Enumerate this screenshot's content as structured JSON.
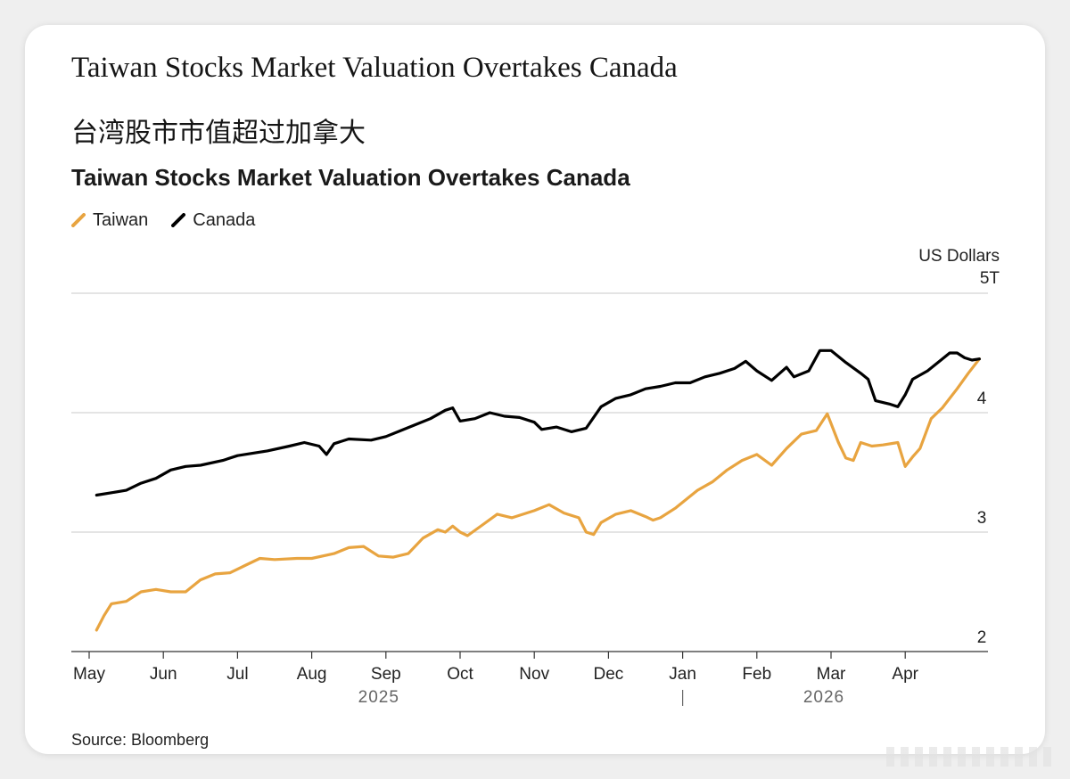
{
  "headline": "Taiwan Stocks Market Valuation Overtakes Canada",
  "headline_cn": "台湾股市市值超过加拿大",
  "source": "Source: Bloomberg",
  "colors": {
    "taiwan": "#e8a440",
    "canada": "#000000",
    "grid": "#d4d4d4",
    "axis": "#333333"
  },
  "chart_data": {
    "type": "line",
    "title": "Taiwan Stocks Market Valuation Overtakes Canada",
    "ylabel": "US Dollars",
    "y_unit_suffix": "T",
    "ylim": [
      2,
      5
    ],
    "yticks": [
      2,
      3,
      4,
      5
    ],
    "ytick_labels": [
      "2",
      "3",
      "4",
      "5T"
    ],
    "xlim": [
      0,
      12.2
    ],
    "x_unit": "months since 1 May 2025",
    "month_ticks": [
      {
        "label": "May",
        "x": 0
      },
      {
        "label": "Jun",
        "x": 1
      },
      {
        "label": "Jul",
        "x": 2
      },
      {
        "label": "Aug",
        "x": 3
      },
      {
        "label": "Sep",
        "x": 4
      },
      {
        "label": "Oct",
        "x": 5
      },
      {
        "label": "Nov",
        "x": 6
      },
      {
        "label": "Dec",
        "x": 7
      },
      {
        "label": "Jan",
        "x": 8
      },
      {
        "label": "Feb",
        "x": 9
      },
      {
        "label": "Mar",
        "x": 10
      },
      {
        "label": "Apr",
        "x": 11
      }
    ],
    "year_labels": [
      {
        "label": "2025",
        "x": 4
      },
      {
        "label": "2026",
        "x": 10
      }
    ],
    "year_divider_x": 8,
    "legend": [
      "Taiwan",
      "Canada"
    ],
    "legend_position": "top-left",
    "series": [
      {
        "name": "Taiwan",
        "color": "#e8a440",
        "points": [
          [
            0.1,
            2.18
          ],
          [
            0.2,
            2.3
          ],
          [
            0.3,
            2.4
          ],
          [
            0.5,
            2.42
          ],
          [
            0.7,
            2.5
          ],
          [
            0.9,
            2.52
          ],
          [
            1.1,
            2.5
          ],
          [
            1.3,
            2.5
          ],
          [
            1.5,
            2.6
          ],
          [
            1.7,
            2.65
          ],
          [
            1.9,
            2.66
          ],
          [
            2.1,
            2.72
          ],
          [
            2.3,
            2.78
          ],
          [
            2.5,
            2.77
          ],
          [
            2.8,
            2.78
          ],
          [
            3.0,
            2.78
          ],
          [
            3.3,
            2.82
          ],
          [
            3.5,
            2.87
          ],
          [
            3.7,
            2.88
          ],
          [
            3.9,
            2.8
          ],
          [
            4.1,
            2.79
          ],
          [
            4.3,
            2.82
          ],
          [
            4.5,
            2.95
          ],
          [
            4.7,
            3.02
          ],
          [
            4.8,
            3.0
          ],
          [
            4.9,
            3.05
          ],
          [
            5.0,
            3.0
          ],
          [
            5.1,
            2.97
          ],
          [
            5.3,
            3.06
          ],
          [
            5.5,
            3.15
          ],
          [
            5.7,
            3.12
          ],
          [
            6.0,
            3.18
          ],
          [
            6.2,
            3.23
          ],
          [
            6.4,
            3.16
          ],
          [
            6.6,
            3.12
          ],
          [
            6.7,
            3.0
          ],
          [
            6.8,
            2.98
          ],
          [
            6.9,
            3.08
          ],
          [
            7.1,
            3.15
          ],
          [
            7.3,
            3.18
          ],
          [
            7.5,
            3.13
          ],
          [
            7.6,
            3.1
          ],
          [
            7.7,
            3.12
          ],
          [
            7.9,
            3.2
          ],
          [
            8.0,
            3.25
          ],
          [
            8.2,
            3.35
          ],
          [
            8.4,
            3.42
          ],
          [
            8.6,
            3.52
          ],
          [
            8.8,
            3.6
          ],
          [
            9.0,
            3.65
          ],
          [
            9.2,
            3.56
          ],
          [
            9.4,
            3.7
          ],
          [
            9.6,
            3.82
          ],
          [
            9.8,
            3.85
          ],
          [
            9.95,
            3.99
          ],
          [
            10.1,
            3.75
          ],
          [
            10.2,
            3.62
          ],
          [
            10.3,
            3.6
          ],
          [
            10.4,
            3.75
          ],
          [
            10.55,
            3.72
          ],
          [
            10.7,
            3.73
          ],
          [
            10.9,
            3.75
          ],
          [
            11.0,
            3.55
          ],
          [
            11.1,
            3.63
          ],
          [
            11.2,
            3.7
          ],
          [
            11.35,
            3.95
          ],
          [
            11.5,
            4.04
          ],
          [
            11.7,
            4.2
          ],
          [
            11.85,
            4.33
          ],
          [
            12.0,
            4.45
          ]
        ]
      },
      {
        "name": "Canada",
        "color": "#000000",
        "points": [
          [
            0.1,
            3.31
          ],
          [
            0.3,
            3.33
          ],
          [
            0.5,
            3.35
          ],
          [
            0.7,
            3.41
          ],
          [
            0.9,
            3.45
          ],
          [
            1.1,
            3.52
          ],
          [
            1.3,
            3.55
          ],
          [
            1.5,
            3.56
          ],
          [
            1.8,
            3.6
          ],
          [
            2.0,
            3.64
          ],
          [
            2.2,
            3.66
          ],
          [
            2.4,
            3.68
          ],
          [
            2.7,
            3.72
          ],
          [
            2.9,
            3.75
          ],
          [
            3.1,
            3.72
          ],
          [
            3.2,
            3.65
          ],
          [
            3.3,
            3.74
          ],
          [
            3.5,
            3.78
          ],
          [
            3.8,
            3.77
          ],
          [
            4.0,
            3.8
          ],
          [
            4.2,
            3.85
          ],
          [
            4.4,
            3.9
          ],
          [
            4.6,
            3.95
          ],
          [
            4.8,
            4.02
          ],
          [
            4.9,
            4.04
          ],
          [
            5.0,
            3.93
          ],
          [
            5.2,
            3.95
          ],
          [
            5.4,
            4.0
          ],
          [
            5.6,
            3.97
          ],
          [
            5.8,
            3.96
          ],
          [
            6.0,
            3.92
          ],
          [
            6.1,
            3.86
          ],
          [
            6.3,
            3.88
          ],
          [
            6.5,
            3.84
          ],
          [
            6.7,
            3.87
          ],
          [
            6.9,
            4.05
          ],
          [
            7.1,
            4.12
          ],
          [
            7.3,
            4.15
          ],
          [
            7.5,
            4.2
          ],
          [
            7.7,
            4.22
          ],
          [
            7.9,
            4.25
          ],
          [
            8.1,
            4.25
          ],
          [
            8.3,
            4.3
          ],
          [
            8.5,
            4.33
          ],
          [
            8.7,
            4.37
          ],
          [
            8.85,
            4.43
          ],
          [
            9.0,
            4.35
          ],
          [
            9.2,
            4.27
          ],
          [
            9.4,
            4.38
          ],
          [
            9.5,
            4.3
          ],
          [
            9.7,
            4.35
          ],
          [
            9.85,
            4.52
          ],
          [
            10.0,
            4.52
          ],
          [
            10.2,
            4.42
          ],
          [
            10.4,
            4.33
          ],
          [
            10.5,
            4.28
          ],
          [
            10.6,
            4.1
          ],
          [
            10.8,
            4.07
          ],
          [
            10.9,
            4.05
          ],
          [
            11.0,
            4.15
          ],
          [
            11.1,
            4.28
          ],
          [
            11.3,
            4.35
          ],
          [
            11.5,
            4.45
          ],
          [
            11.6,
            4.5
          ],
          [
            11.7,
            4.5
          ],
          [
            11.8,
            4.46
          ],
          [
            11.9,
            4.44
          ],
          [
            12.0,
            4.45
          ]
        ]
      }
    ]
  }
}
